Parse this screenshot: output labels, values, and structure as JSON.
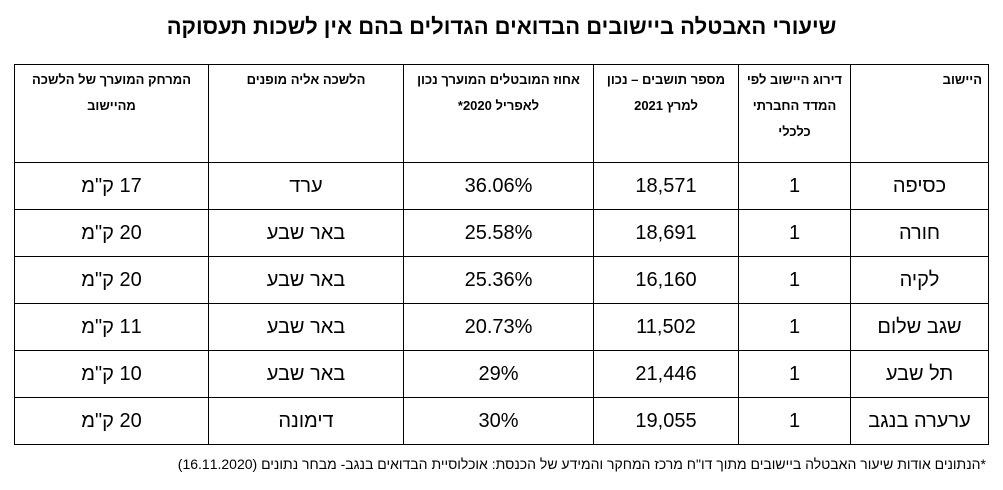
{
  "title": "שיעורי האבטלה ביישובים הבדואים הגדולים בהם אין לשכות תעסוקה",
  "headers": {
    "settlement": "היישוב",
    "ranking": "דירוג היישוב לפי המדד החברתי כלכלי",
    "population": "מספר תושבים – נכון למרץ 2021",
    "unemployment": "אחוז המובטלים המוערך נכון לאפריל 2020*",
    "office": "הלשכה אליה מופנים",
    "distance": "המרחק המוערך של הלשכה מהיישוב"
  },
  "rows": [
    {
      "settlement": "כסיפה",
      "ranking": "1",
      "population": "18,571",
      "unemployment": "36.06%",
      "office": "ערד",
      "distance": "17 ק\"מ"
    },
    {
      "settlement": "חורה",
      "ranking": "1",
      "population": "18,691",
      "unemployment": "25.58%",
      "office": "באר שבע",
      "distance": "20 ק\"מ"
    },
    {
      "settlement": "לקיה",
      "ranking": "1",
      "population": "16,160",
      "unemployment": "25.36%",
      "office": "באר שבע",
      "distance": "20 ק\"מ"
    },
    {
      "settlement": "שגב שלום",
      "ranking": "1",
      "population": "11,502",
      "unemployment": "20.73%",
      "office": "באר שבע",
      "distance": "11 ק\"מ"
    },
    {
      "settlement": "תל שבע",
      "ranking": "1",
      "population": "21,446",
      "unemployment": "29%",
      "office": "באר שבע",
      "distance": "10 ק\"מ"
    },
    {
      "settlement": "ערערה בנגב",
      "ranking": "1",
      "population": "19,055",
      "unemployment": "30%",
      "office": "דימונה",
      "distance": "20 ק\"מ"
    }
  ],
  "footnote": "*הנתונים אודות שיעור האבטלה ביישובים מתוך דו\"ח מרכז המחקר והמידע של הכנסת: אוכלוסיית הבדואים בנגב- מבחר נתונים (16.11.2020)"
}
